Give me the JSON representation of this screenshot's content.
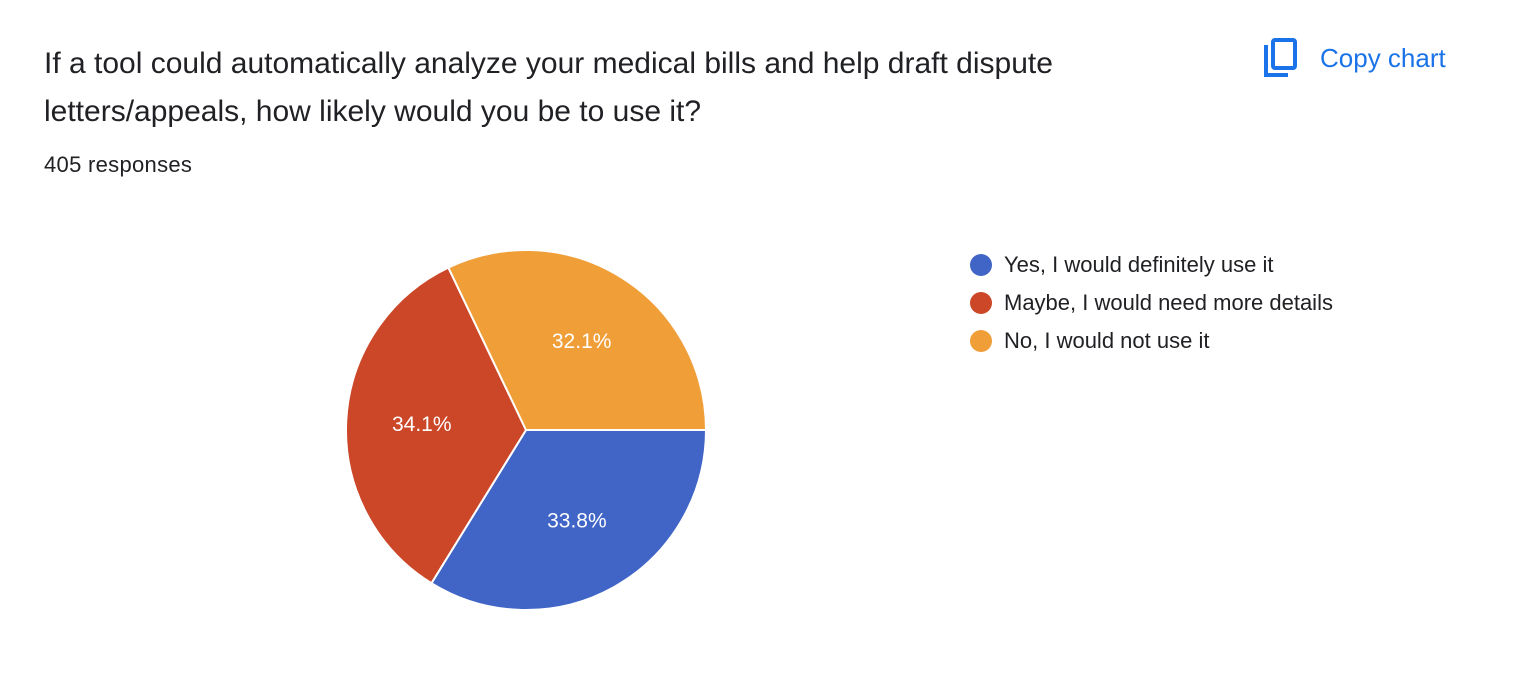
{
  "question": {
    "title": "If a tool could automatically analyze your medical bills and help draft dispute letters/appeals, how likely would you be to use it?",
    "response_count": "405 responses"
  },
  "toolbar": {
    "copy_chart_label": "Copy chart",
    "copy_icon": "copy-icon",
    "accent_color": "#1a73e8"
  },
  "chart_data": {
    "type": "pie",
    "slices": [
      {
        "label": "Yes, I would definitely use it",
        "value": 33.8,
        "display": "33.8%",
        "color": "#4065c6"
      },
      {
        "label": "Maybe, I would need more details",
        "value": 34.1,
        "display": "34.1%",
        "color": "#cc4628"
      },
      {
        "label": "No, I would not use it",
        "value": 32.1,
        "display": "32.1%",
        "color": "#f09e38"
      }
    ],
    "legend_position": "right"
  }
}
